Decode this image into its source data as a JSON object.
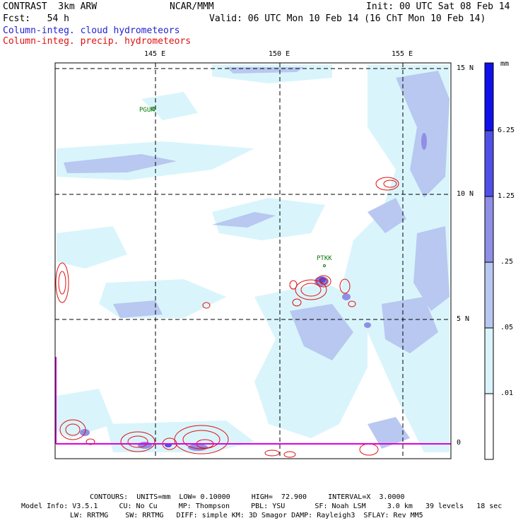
{
  "header": {
    "model": "CONTRAST  3km ARW",
    "org": "NCAR/MMM",
    "init": "Init: 00 UTC Sat 08 Feb 14",
    "fcst": "Fcst:   54 h",
    "valid": "Valid: 06 UTC Mon 10 Feb 14 (16 ChT Mon 10 Feb 14)",
    "field_cloud": "Column-integ. cloud hydrometeors",
    "field_precip": "Column-integ. precip. hydrometeors"
  },
  "colors": {
    "cloud_label": "#1f1fd0",
    "precip_label": "#e01010",
    "shade_lightest": "#d9f5fb",
    "shade_light": "#b8c8f0",
    "shade_mid": "#8f8fe6",
    "shade_dark": "#5050e8",
    "shade_darkest": "#1010ea",
    "contour": "#e01010",
    "boundary": "#e000e0",
    "station": "#0a7a0a"
  },
  "map": {
    "lon_labels": [
      "145 E",
      "150 E",
      "155 E"
    ],
    "lat_labels": [
      "15 N",
      "10 N",
      "5 N",
      "0"
    ],
    "stations": [
      "PGUM",
      "PTKK"
    ]
  },
  "colorbar": {
    "units": "mm",
    "levels": [
      ".01",
      ".05",
      ".25",
      "1.25",
      "6.25"
    ],
    "level_values": [
      0.01,
      0.05,
      0.25,
      1.25,
      6.25
    ]
  },
  "footer": {
    "contours": "CONTOURS:  UNITS=mm  LOW= 0.10000     HIGH=  72.900     INTERVAL=X  3.0000",
    "model_info_1": "Model Info: V3.5.1     CU: No Cu     MP: Thompson     PBL: YSU       SF: Noah LSM     3.0 km   39 levels   18 sec",
    "model_info_2": "LW: RRTMG    SW: RRTMG   DIFF: simple KM: 3D Smagor DAMP: Rayleigh3  SFLAY: Rev MM5"
  }
}
